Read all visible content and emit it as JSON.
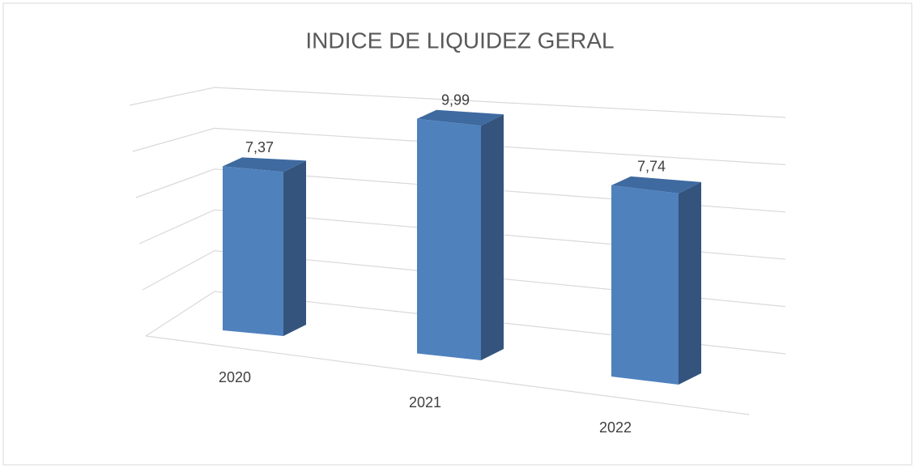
{
  "chart_data": {
    "type": "bar3d",
    "title": "INDICE DE LIQUIDEZ GERAL",
    "categories": [
      "2020",
      "2021",
      "2022"
    ],
    "values": [
      7.37,
      9.99,
      7.74
    ],
    "value_labels": [
      "7,37",
      "9,99",
      "7,74"
    ],
    "color": "#4f81bd",
    "ylim": [
      0,
      10
    ],
    "yticks": [
      0,
      2,
      4,
      6,
      8,
      10
    ],
    "grid": true
  }
}
